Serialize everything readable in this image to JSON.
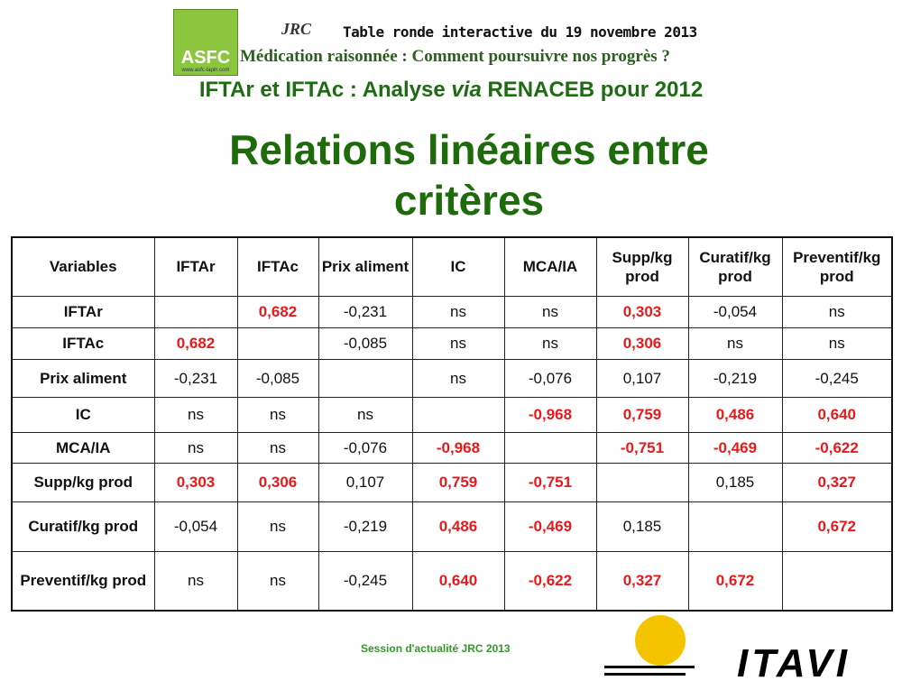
{
  "header": {
    "logo": "ASFC",
    "logo_url": "www.asfc-lapin.com",
    "jrc": "JRC",
    "event": "Table ronde interactive du 19 novembre 2013",
    "theme": "Médication raisonnée : Comment poursuivre nos progrès ?",
    "subtitle": {
      "before": "IFTAr et IFTAc : Analyse ",
      "italic": "via",
      "after": " RENACEB pour 2012"
    },
    "title_lines": [
      "Relations linéaires entre",
      "critères"
    ]
  },
  "table": {
    "highlight_color": "#e8191b",
    "columns": [
      "Variables",
      "IFTAr",
      "IFTAc",
      "Prix aliment",
      "IC",
      "MCA/IA",
      "Supp/kg prod",
      "Curatif/kg prod",
      "Preventif/kg prod"
    ],
    "rows": [
      {
        "label": "IFTAr",
        "cells": [
          null,
          "0,682",
          "-0,231",
          "ns",
          "ns",
          "0,303",
          "-0,054",
          "ns"
        ],
        "highlight": [
          1,
          5
        ]
      },
      {
        "label": "IFTAc",
        "cells": [
          "0,682",
          null,
          "-0,085",
          "ns",
          "ns",
          "0,306",
          "ns",
          "ns"
        ],
        "highlight": [
          0,
          5
        ]
      },
      {
        "label": "Prix aliment",
        "cells": [
          "-0,231",
          "-0,085",
          null,
          "ns",
          "-0,076",
          "0,107",
          "-0,219",
          "-0,245"
        ],
        "highlight": []
      },
      {
        "label": "IC",
        "cells": [
          "ns",
          "ns",
          "ns",
          null,
          "-0,968",
          "0,759",
          "0,486",
          "0,640"
        ],
        "highlight": [
          4,
          5,
          6,
          7
        ]
      },
      {
        "label": "MCA/IA",
        "cells": [
          "ns",
          "ns",
          "-0,076",
          "-0,968",
          null,
          "-0,751",
          "-0,469",
          "-0,622"
        ],
        "highlight": [
          3,
          5,
          6,
          7
        ]
      },
      {
        "label": "Supp/kg prod",
        "cells": [
          "0,303",
          "0,306",
          "0,107",
          "0,759",
          "-0,751",
          null,
          "0,185",
          "0,327"
        ],
        "highlight": [
          0,
          1,
          3,
          4,
          7
        ]
      },
      {
        "label": "Curatif/kg prod",
        "cells": [
          "-0,054",
          "ns",
          "-0,219",
          "0,486",
          "-0,469",
          "0,185",
          null,
          "0,672"
        ],
        "highlight": [
          3,
          4,
          7
        ]
      },
      {
        "label": "Preventif/kg prod",
        "cells": [
          "ns",
          "ns",
          "-0,245",
          "0,640",
          "-0,622",
          "0,327",
          "0,672",
          null
        ],
        "highlight": [
          3,
          4,
          5,
          6
        ]
      }
    ]
  },
  "footer": {
    "session": "Session d'actualité JRC 2013",
    "logo": "ITAVI"
  }
}
